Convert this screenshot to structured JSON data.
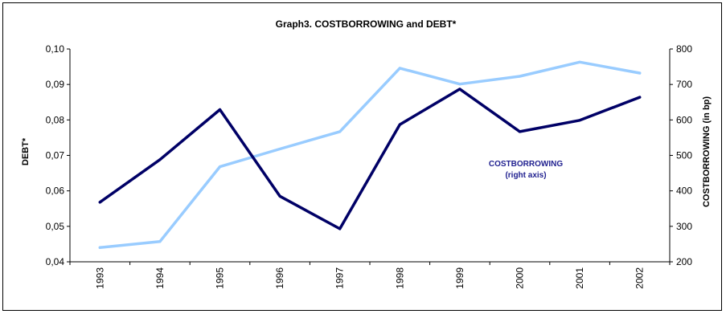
{
  "chart_data": {
    "type": "line",
    "title": "Graph3. COSTBORROWING and DEBT*",
    "xlabel": "",
    "ylabel": "DEBT*",
    "y2label": "COSTBORROWING (in bp)",
    "categories": [
      "1993",
      "1994",
      "1995",
      "1996",
      "1997",
      "1998",
      "1999",
      "2000",
      "2001",
      "2002"
    ],
    "ylim": [
      0.04,
      0.1
    ],
    "y2lim": [
      200,
      800
    ],
    "yticks": [
      "0,04",
      "0,05",
      "0,06",
      "0,07",
      "0,08",
      "0,09",
      "0,10"
    ],
    "yticks_values": [
      0.04,
      0.05,
      0.06,
      0.07,
      0.08,
      0.09,
      0.1
    ],
    "y2ticks": [
      "200",
      "300",
      "400",
      "500",
      "600",
      "700",
      "800"
    ],
    "y2ticks_values": [
      200,
      300,
      400,
      500,
      600,
      700,
      800
    ],
    "grid": false,
    "legend": "none",
    "series": [
      {
        "axis": "left",
        "color": "#99ccff",
        "values": [
          0.044,
          0.0457,
          0.0668,
          0.0718,
          0.0767,
          0.0946,
          0.0901,
          0.0923,
          0.0963,
          0.0932
        ]
      },
      {
        "name": "COSTBORROWING",
        "axis": "right",
        "color": "#000066",
        "values": [
          368,
          488,
          629,
          385,
          293,
          587,
          687,
          567,
          599,
          664
        ]
      }
    ],
    "annotation": {
      "line1": "COSTBORROWING",
      "line2": "(right axis)"
    }
  }
}
